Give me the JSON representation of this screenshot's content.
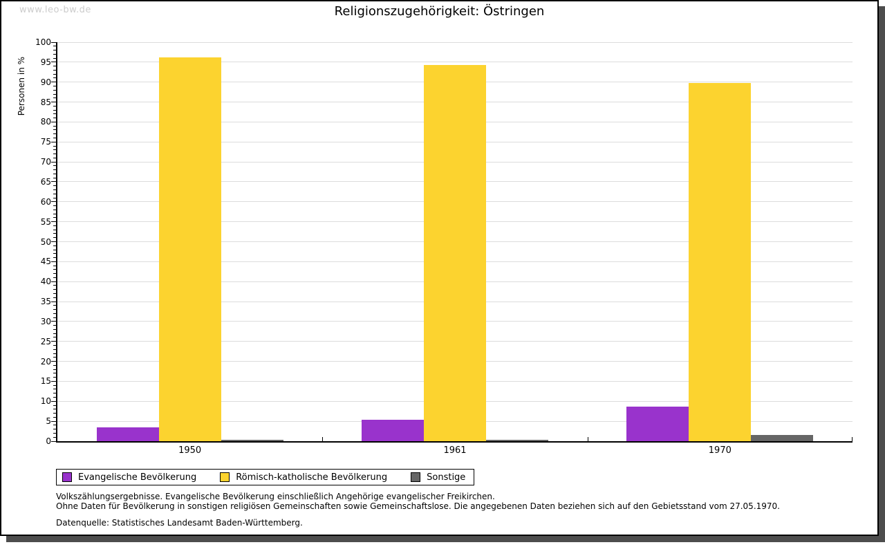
{
  "watermark": "www.leo-bw.de",
  "colors": {
    "background": "#ffffff",
    "panel_border": "#000000",
    "panel_shadow": "#4d4d4d",
    "grid": "#dcdcdc",
    "axis": "#000000",
    "watermark": "#cccccc",
    "evangelisch": "#9933cc",
    "katholisch": "#fcd32f",
    "sonstige": "#666666"
  },
  "chart_data": {
    "type": "bar",
    "title": "Religionszugehörigkeit: Östringen",
    "ylabel": "Personen in %",
    "xlabel": "",
    "ylim": [
      0,
      100
    ],
    "ytick_step": 5,
    "minor_tick_step": 1,
    "grid": true,
    "legend_position": "bottom-left",
    "categories": [
      "1950",
      "1961",
      "1970"
    ],
    "series": [
      {
        "name": "Evangelische Bevölkerung",
        "color": "#9933cc",
        "values": [
          3.5,
          5.4,
          8.7
        ]
      },
      {
        "name": "Römisch-katholische Bevölkerung",
        "color": "#fcd32f",
        "values": [
          96.2,
          94.3,
          89.8
        ]
      },
      {
        "name": "Sonstige",
        "color": "#666666",
        "values": [
          0.3,
          0.3,
          1.5
        ]
      }
    ]
  },
  "footnotes": {
    "line1": "Volkszählungsergebnisse. Evangelische Bevölkerung einschließlich Angehörige evangelischer Freikirchen.",
    "line2": "Ohne Daten für Bevölkerung in sonstigen religiösen Gemeinschaften sowie Gemeinschaftslose. Die angegebenen Daten beziehen sich auf den Gebietsstand vom 27.05.1970.",
    "source": "Datenquelle: Statistisches Landesamt Baden-Württemberg."
  }
}
